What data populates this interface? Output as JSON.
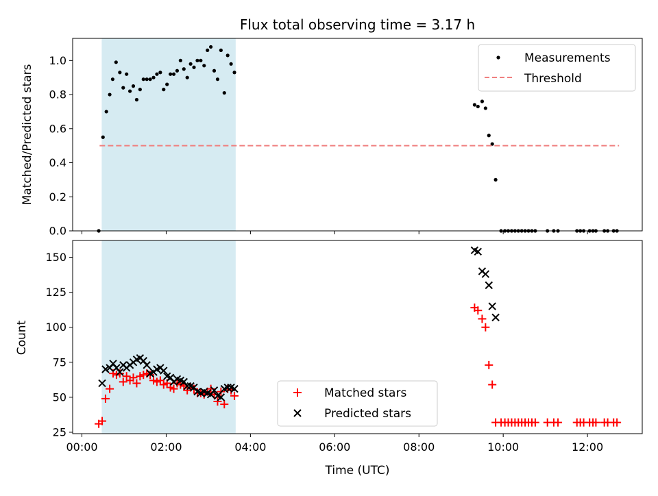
{
  "chart_data": {
    "title": "Flux total observing time = 3.17 h",
    "xlabel": "Time (UTC)",
    "x_unit": "hours UTC",
    "xlim": [
      -0.22,
      13.3
    ],
    "xticks": [
      0,
      2,
      4,
      6,
      8,
      10,
      12
    ],
    "xtick_labels": [
      "00:00",
      "02:00",
      "04:00",
      "06:00",
      "08:00",
      "10:00",
      "12:00"
    ],
    "shaded_interval": [
      0.47,
      3.65
    ],
    "shade_color": "#add8e6",
    "panels": [
      {
        "type": "scatter",
        "ylabel": "Matched/Predicted stars",
        "ylim": [
          0,
          1.13
        ],
        "yticks": [
          0.0,
          0.2,
          0.4,
          0.6,
          0.8,
          1.0
        ],
        "ytick_labels": [
          "0.0",
          "0.2",
          "0.4",
          "0.6",
          "0.8",
          "1.0"
        ],
        "legend_position": "top-right",
        "series": [
          {
            "name": "Measurements",
            "marker": "dot",
            "color": "#000000",
            "points": [
              [
                0.4,
                0.0
              ],
              [
                0.5,
                0.55
              ],
              [
                0.58,
                0.7
              ],
              [
                0.66,
                0.8
              ],
              [
                0.73,
                0.89
              ],
              [
                0.81,
                0.99
              ],
              [
                0.9,
                0.93
              ],
              [
                0.98,
                0.84
              ],
              [
                1.06,
                0.92
              ],
              [
                1.14,
                0.82
              ],
              [
                1.22,
                0.85
              ],
              [
                1.3,
                0.77
              ],
              [
                1.38,
                0.83
              ],
              [
                1.46,
                0.89
              ],
              [
                1.54,
                0.89
              ],
              [
                1.62,
                0.89
              ],
              [
                1.7,
                0.9
              ],
              [
                1.78,
                0.92
              ],
              [
                1.86,
                0.93
              ],
              [
                1.94,
                0.83
              ],
              [
                2.02,
                0.86
              ],
              [
                2.1,
                0.92
              ],
              [
                2.18,
                0.92
              ],
              [
                2.26,
                0.94
              ],
              [
                2.34,
                1.0
              ],
              [
                2.42,
                0.95
              ],
              [
                2.5,
                0.9
              ],
              [
                2.58,
                0.98
              ],
              [
                2.66,
                0.96
              ],
              [
                2.74,
                1.0
              ],
              [
                2.82,
                1.0
              ],
              [
                2.9,
                0.97
              ],
              [
                2.98,
                1.06
              ],
              [
                3.06,
                1.08
              ],
              [
                3.14,
                0.94
              ],
              [
                3.22,
                0.89
              ],
              [
                3.3,
                1.06
              ],
              [
                3.38,
                0.81
              ],
              [
                3.46,
                1.03
              ],
              [
                3.54,
                0.98
              ],
              [
                3.62,
                0.93
              ],
              [
                9.32,
                0.74
              ],
              [
                9.4,
                0.73
              ],
              [
                9.5,
                0.76
              ],
              [
                9.58,
                0.72
              ],
              [
                9.66,
                0.56
              ],
              [
                9.74,
                0.51
              ],
              [
                9.82,
                0.3
              ],
              [
                9.95,
                0.0
              ],
              [
                10.04,
                0.0
              ],
              [
                10.12,
                0.0
              ],
              [
                10.2,
                0.0
              ],
              [
                10.28,
                0.0
              ],
              [
                10.36,
                0.0
              ],
              [
                10.44,
                0.0
              ],
              [
                10.52,
                0.0
              ],
              [
                10.6,
                0.0
              ],
              [
                10.68,
                0.0
              ],
              [
                10.76,
                0.0
              ],
              [
                11.05,
                0.0
              ],
              [
                11.2,
                0.0
              ],
              [
                11.3,
                0.0
              ],
              [
                11.75,
                0.0
              ],
              [
                11.83,
                0.0
              ],
              [
                11.91,
                0.0
              ],
              [
                12.05,
                0.0
              ],
              [
                12.13,
                0.0
              ],
              [
                12.2,
                0.0
              ],
              [
                12.4,
                0.0
              ],
              [
                12.48,
                0.0
              ],
              [
                12.62,
                0.0
              ],
              [
                12.7,
                0.0
              ]
            ]
          },
          {
            "name": "Threshold",
            "marker": "dashed-line",
            "color": "#f08080",
            "points": [
              [
                0.42,
                0.5
              ],
              [
                12.75,
                0.5
              ]
            ]
          }
        ]
      },
      {
        "type": "scatter",
        "ylabel": "Count",
        "ylim": [
          24,
          162
        ],
        "yticks": [
          25,
          50,
          75,
          100,
          125,
          150
        ],
        "ytick_labels": [
          "25",
          "50",
          "75",
          "100",
          "125",
          "150"
        ],
        "legend_position": "lower-center",
        "series": [
          {
            "name": "Matched stars",
            "marker": "plus",
            "color": "#ff0000",
            "points": [
              [
                0.4,
                31
              ],
              [
                0.48,
                33
              ],
              [
                0.56,
                49
              ],
              [
                0.66,
                56
              ],
              [
                0.74,
                67
              ],
              [
                0.82,
                66
              ],
              [
                0.9,
                67
              ],
              [
                0.98,
                61
              ],
              [
                1.06,
                65
              ],
              [
                1.14,
                62
              ],
              [
                1.22,
                64
              ],
              [
                1.3,
                60
              ],
              [
                1.38,
                65
              ],
              [
                1.46,
                66
              ],
              [
                1.54,
                67
              ],
              [
                1.62,
                66
              ],
              [
                1.7,
                62
              ],
              [
                1.78,
                61
              ],
              [
                1.86,
                62
              ],
              [
                1.94,
                59
              ],
              [
                2.02,
                60
              ],
              [
                2.1,
                57
              ],
              [
                2.18,
                56
              ],
              [
                2.26,
                60
              ],
              [
                2.34,
                59
              ],
              [
                2.42,
                58
              ],
              [
                2.5,
                55
              ],
              [
                2.58,
                57
              ],
              [
                2.66,
                56
              ],
              [
                2.74,
                53
              ],
              [
                2.82,
                53
              ],
              [
                2.9,
                52
              ],
              [
                2.98,
                54
              ],
              [
                3.06,
                56
              ],
              [
                3.14,
                52
              ],
              [
                3.22,
                47
              ],
              [
                3.3,
                54
              ],
              [
                3.38,
                45
              ],
              [
                3.46,
                56
              ],
              [
                3.54,
                55
              ],
              [
                3.62,
                51
              ],
              [
                9.32,
                114
              ],
              [
                9.4,
                112
              ],
              [
                9.5,
                106
              ],
              [
                9.58,
                100
              ],
              [
                9.66,
                73
              ],
              [
                9.74,
                59
              ],
              [
                9.82,
                32
              ],
              [
                9.95,
                32
              ],
              [
                10.04,
                32
              ],
              [
                10.12,
                32
              ],
              [
                10.2,
                32
              ],
              [
                10.28,
                32
              ],
              [
                10.36,
                32
              ],
              [
                10.44,
                32
              ],
              [
                10.52,
                32
              ],
              [
                10.6,
                32
              ],
              [
                10.68,
                32
              ],
              [
                10.76,
                32
              ],
              [
                11.05,
                32
              ],
              [
                11.2,
                32
              ],
              [
                11.3,
                32
              ],
              [
                11.75,
                32
              ],
              [
                11.83,
                32
              ],
              [
                11.91,
                32
              ],
              [
                12.05,
                32
              ],
              [
                12.13,
                32
              ],
              [
                12.2,
                32
              ],
              [
                12.4,
                32
              ],
              [
                12.48,
                32
              ],
              [
                12.62,
                32
              ],
              [
                12.7,
                32
              ]
            ]
          },
          {
            "name": "Predicted stars",
            "marker": "x",
            "color": "#000000",
            "points": [
              [
                0.48,
                60
              ],
              [
                0.56,
                70
              ],
              [
                0.66,
                71
              ],
              [
                0.74,
                74
              ],
              [
                0.82,
                71
              ],
              [
                0.9,
                68
              ],
              [
                0.98,
                73
              ],
              [
                1.06,
                71
              ],
              [
                1.14,
                73
              ],
              [
                1.22,
                75
              ],
              [
                1.3,
                77
              ],
              [
                1.38,
                78
              ],
              [
                1.46,
                76
              ],
              [
                1.54,
                73
              ],
              [
                1.62,
                67
              ],
              [
                1.7,
                68
              ],
              [
                1.78,
                70
              ],
              [
                1.86,
                71
              ],
              [
                1.94,
                69
              ],
              [
                2.02,
                65
              ],
              [
                2.1,
                64
              ],
              [
                2.18,
                61
              ],
              [
                2.26,
                63
              ],
              [
                2.34,
                62
              ],
              [
                2.42,
                61
              ],
              [
                2.5,
                58
              ],
              [
                2.58,
                58
              ],
              [
                2.66,
                57
              ],
              [
                2.74,
                54
              ],
              [
                2.82,
                53
              ],
              [
                2.9,
                54
              ],
              [
                2.98,
                53
              ],
              [
                3.06,
                52
              ],
              [
                3.14,
                55
              ],
              [
                3.22,
                51
              ],
              [
                3.3,
                50
              ],
              [
                3.38,
                56
              ],
              [
                3.46,
                57
              ],
              [
                3.54,
                57
              ],
              [
                3.62,
                56
              ],
              [
                9.32,
                155
              ],
              [
                9.4,
                154
              ],
              [
                9.5,
                140
              ],
              [
                9.58,
                138
              ],
              [
                9.66,
                130
              ],
              [
                9.74,
                115
              ],
              [
                9.82,
                107
              ]
            ]
          }
        ]
      }
    ]
  }
}
